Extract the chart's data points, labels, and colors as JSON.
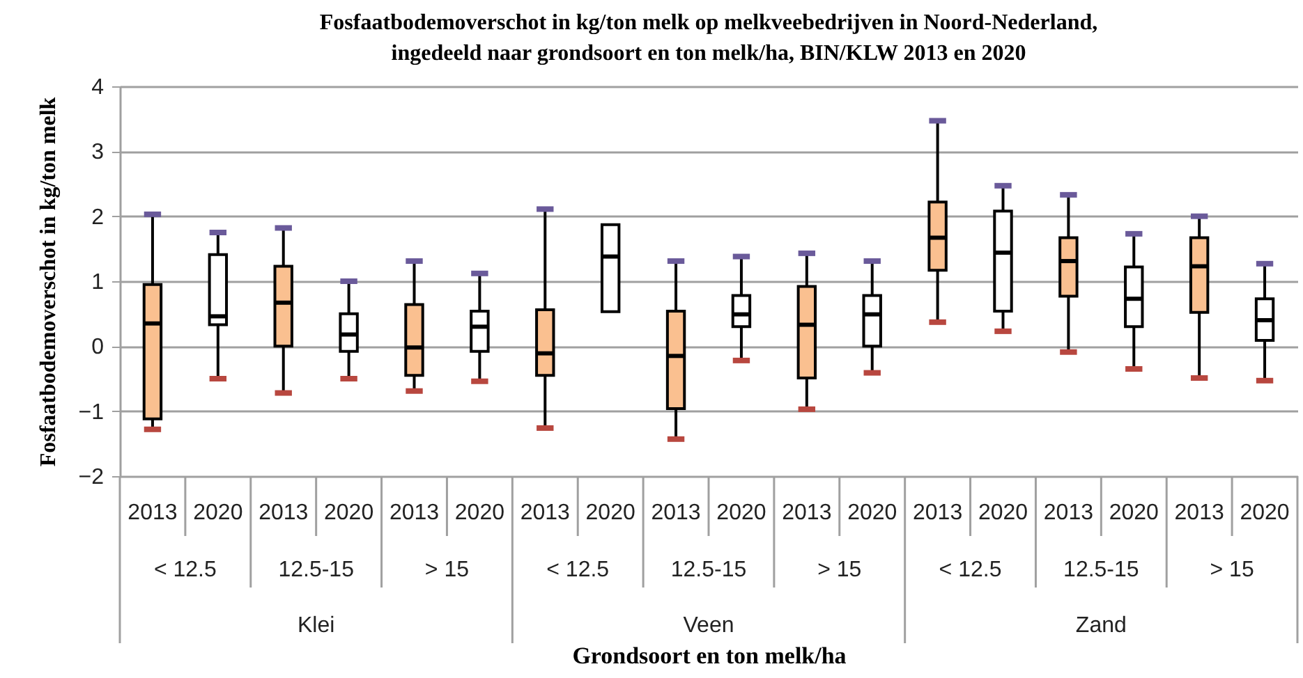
{
  "chart_data": {
    "type": "box",
    "title": "Fosfaatbodemoverschot in kg/ton melk op melkveebedrijven in Noord-Nederland,\ningedeeld naar grondsoort en ton melk/ha, BIN/KLW 2013 en 2020",
    "xlabel": "Grondsoort en ton melk/ha",
    "ylabel": "Fosfaatbodemoverschot in kg/ton melk",
    "categories": [
      "2013",
      "2020",
      "2013",
      "2020",
      "2013",
      "2020",
      "2013",
      "2020",
      "2013",
      "2020",
      "2013",
      "2020",
      "2013",
      "2020",
      "2013",
      "2020",
      "2013",
      "2020"
    ],
    "annotations": [
      "< 12.5",
      "12.5-15",
      "> 15",
      "< 12.5",
      "12.5-15",
      "> 15",
      "< 12.5",
      "12.5-15",
      "> 15",
      "Klei",
      "Veen",
      "Zand"
    ],
    "colors": [
      "#fac090",
      "#ffffff",
      "#fac090",
      "#ffffff",
      "#fac090",
      "#ffffff",
      "#fac090",
      "#ffffff",
      "#fac090",
      "#ffffff",
      "#fac090",
      "#ffffff",
      "#fac090",
      "#ffffff",
      "#fac090",
      "#ffffff",
      "#fac090",
      "#ffffff"
    ],
    "boxes": [
      {
        "low": -1.28,
        "q1": -1.12,
        "median": 0.35,
        "q3": 0.95,
        "high": 2.03
      },
      {
        "low": -0.5,
        "q1": 0.33,
        "median": 0.46,
        "q3": 1.41,
        "high": 1.75
      },
      {
        "low": -0.72,
        "q1": 0,
        "median": 0.67,
        "q3": 1.23,
        "high": 1.82
      },
      {
        "low": -0.5,
        "q1": -0.08,
        "median": 0.18,
        "q3": 0.5,
        "high": 1.0
      },
      {
        "low": -0.69,
        "q1": -0.45,
        "median": -0.02,
        "q3": 0.64,
        "high": 1.31
      },
      {
        "low": -0.54,
        "q1": -0.08,
        "median": 0.3,
        "q3": 0.54,
        "high": 1.12
      },
      {
        "low": -1.26,
        "q1": -0.45,
        "median": -0.11,
        "q3": 0.56,
        "high": 2.11
      },
      {
        "low": 0.53,
        "q1": 0.53,
        "median": 1.38,
        "q3": 1.87,
        "high": 1.87
      },
      {
        "low": -1.43,
        "q1": -0.96,
        "median": -0.15,
        "q3": 0.54,
        "high": 1.31
      },
      {
        "low": -0.22,
        "q1": 0.3,
        "median": 0.49,
        "q3": 0.78,
        "high": 1.38
      },
      {
        "low": -0.97,
        "q1": -0.49,
        "median": 0.33,
        "q3": 0.92,
        "high": 1.43
      },
      {
        "low": -0.41,
        "q1": 0,
        "median": 0.49,
        "q3": 0.78,
        "high": 1.31
      },
      {
        "low": 0.37,
        "q1": 1.17,
        "median": 1.67,
        "q3": 2.22,
        "high": 3.47
      },
      {
        "low": 0.23,
        "q1": 0.54,
        "median": 1.44,
        "q3": 2.08,
        "high": 2.47
      },
      {
        "low": -0.09,
        "q1": 0.77,
        "median": 1.31,
        "q3": 1.67,
        "high": 2.33
      },
      {
        "low": -0.35,
        "q1": 0.3,
        "median": 0.73,
        "q3": 1.22,
        "high": 1.73
      },
      {
        "low": -0.49,
        "q1": 0.52,
        "median": 1.23,
        "q3": 1.67,
        "high": 2.0
      },
      {
        "low": -0.53,
        "q1": 0.09,
        "median": 0.4,
        "q3": 0.73,
        "high": 1.27
      }
    ],
    "ylim": [
      -2,
      4
    ],
    "yticks": [
      -2,
      -1,
      0,
      1,
      2,
      3,
      4
    ],
    "grid": "y"
  }
}
